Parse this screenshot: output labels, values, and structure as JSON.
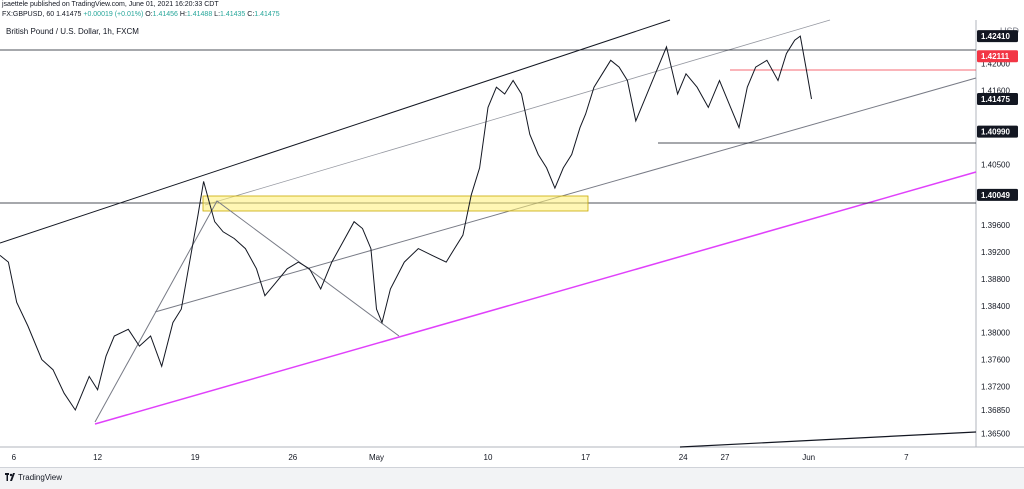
{
  "header": {
    "line1": "jsaettele published on TradingView.com, June 01, 2021 16:20:33 CDT",
    "symbol": "FX:GBPUSD, 60",
    "price": "1.41475",
    "change": "+0.00019 (+0.01%)",
    "o": "O:",
    "o_val": "1.41456",
    "h": "H:",
    "h_val": "1.41488",
    "l": "L:",
    "l_val": "1.41435",
    "c": "C:",
    "c_val": "1.41475"
  },
  "pair_label": "British Pound / U.S. Dollar, 1h, FXCM",
  "footer": {
    "brand": "TradingView"
  },
  "colors": {
    "up": "#26a69a",
    "down": "#ef5350",
    "magenta": "#e040fb",
    "red_line": "#f23645",
    "box": "#fff176"
  },
  "chart_data": {
    "type": "line",
    "title": "British Pound / U.S. Dollar, 1h, FXCM",
    "unit": "USD",
    "ylim": [
      1.363,
      1.4265
    ],
    "yticks": [
      "1.42000",
      "1.41600",
      "1.40500",
      "1.39600",
      "1.39200",
      "1.38800",
      "1.38400",
      "1.38000",
      "1.37600",
      "1.37200",
      "1.36850",
      "1.36500"
    ],
    "ytick_values": [
      1.42,
      1.416,
      1.405,
      1.396,
      1.392,
      1.388,
      1.384,
      1.38,
      1.376,
      1.372,
      1.3685,
      1.365
    ],
    "price_tags": [
      {
        "label": "1.42410",
        "value": 1.4241,
        "color": "#131722"
      },
      {
        "label": "1.42111",
        "value": 1.42111,
        "color": "#f23645"
      },
      {
        "label": "1.41475",
        "value": 1.41475,
        "color": "#131722"
      },
      {
        "label": "1.40990",
        "value": 1.4099,
        "color": "#131722"
      },
      {
        "label": "1.40049",
        "value": 1.40049,
        "color": "#131722"
      }
    ],
    "xticks": [
      "6",
      "12",
      "19",
      "26",
      "May",
      "10",
      "17",
      "24",
      "27",
      "Jun",
      "7"
    ],
    "xtick_days": [
      6,
      12,
      19,
      26,
      32,
      40,
      47,
      54,
      57,
      63,
      70
    ],
    "x_range_days": [
      5,
      75
    ],
    "series": [
      {
        "x": [
          5,
          5.6,
          6.2,
          7,
          8,
          8.8,
          9.6,
          10.4,
          11.4,
          12,
          12.6,
          13.2,
          14.2,
          15,
          15.8,
          16.6,
          17.4,
          18,
          18.6,
          19.2,
          19.6,
          20,
          20.4,
          21,
          21.8,
          22.6,
          23.4,
          24,
          24.8,
          25.6,
          26.4,
          27.2,
          28,
          28.8,
          29.6,
          30.4,
          31,
          31.6,
          32,
          32.4,
          33,
          34,
          35,
          36,
          37,
          37.6,
          38.2,
          38.8,
          39.4,
          40,
          40.6,
          41.2,
          41.8,
          42.4,
          43,
          43.6,
          44.2,
          44.8,
          45.4,
          46,
          46.6,
          47,
          47.6,
          48.2,
          48.8,
          49.4,
          50,
          50.6,
          51.2,
          52,
          52.8,
          53.6,
          54.2,
          55,
          55.8,
          56.6,
          57.4,
          58,
          58.6,
          59.2,
          60,
          60.8,
          61.4,
          62,
          62.4,
          62.8,
          63.2
        ],
        "values": [
          1.3915,
          1.3905,
          1.3845,
          1.381,
          1.376,
          1.3745,
          1.371,
          1.3685,
          1.3735,
          1.3715,
          1.3765,
          1.3795,
          1.3805,
          1.378,
          1.3795,
          1.375,
          1.3815,
          1.3835,
          1.3905,
          1.3975,
          1.4025,
          1.3995,
          1.3965,
          1.395,
          1.394,
          1.3925,
          1.3895,
          1.3855,
          1.3875,
          1.3895,
          1.3905,
          1.3895,
          1.3865,
          1.3905,
          1.3935,
          1.3965,
          1.3955,
          1.3925,
          1.3835,
          1.3815,
          1.3865,
          1.3905,
          1.3925,
          1.3915,
          1.3905,
          1.3925,
          1.3945,
          1.4005,
          1.4045,
          1.4135,
          1.4165,
          1.4155,
          1.4175,
          1.4155,
          1.4095,
          1.4065,
          1.4045,
          1.4015,
          1.4045,
          1.4065,
          1.4105,
          1.4125,
          1.4165,
          1.4185,
          1.4205,
          1.4195,
          1.4175,
          1.4115,
          1.4145,
          1.4185,
          1.4225,
          1.4155,
          1.4185,
          1.4165,
          1.4135,
          1.4175,
          1.4135,
          1.4105,
          1.4165,
          1.4195,
          1.4205,
          1.4175,
          1.4215,
          1.4235,
          1.4241,
          1.4195,
          1.41475
        ]
      }
    ]
  }
}
